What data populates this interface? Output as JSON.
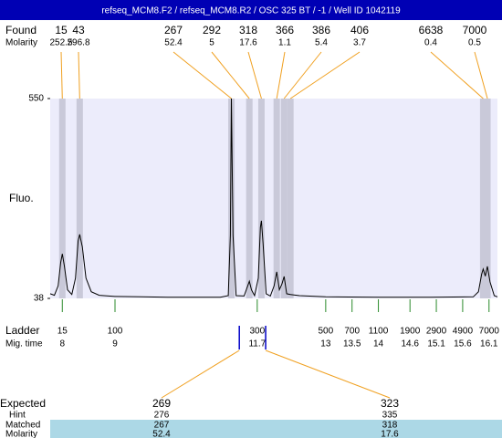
{
  "chart_data": {
    "type": "line",
    "title": "refseq_MCM8.F2 / refseq_MCM8.R2 / OSC 325 BT / -1 / Well ID 1042119",
    "found_label": "Found",
    "molarity_label": "Molarity",
    "y_label": "Fluo.",
    "ylim": [
      38,
      550
    ],
    "yticks": [
      38,
      550
    ],
    "xlim": [
      7.77,
      16.26
    ],
    "found": [
      {
        "size": 15,
        "molarity": 252.5,
        "time": 8.0
      },
      {
        "size": 43,
        "molarity": 296.8,
        "time": 8.33
      },
      {
        "size": 267,
        "molarity": 52.4,
        "time": 11.21
      },
      {
        "size": 292,
        "molarity": 5,
        "time": 11.55
      },
      {
        "size": 318,
        "molarity": 17.6,
        "time": 11.78
      },
      {
        "size": 366,
        "molarity": 1.1,
        "time": 12.07
      },
      {
        "size": 386,
        "molarity": 5.4,
        "time": 12.21
      },
      {
        "size": 406,
        "molarity": 3.7,
        "time": 12.33
      },
      {
        "size": 6638,
        "molarity": 0.4,
        "time": 15.99
      },
      {
        "size": 7000,
        "molarity": 0.5,
        "time": 16.07
      }
    ],
    "trace": {
      "x": [
        7.77,
        7.85,
        7.92,
        7.97,
        8.0,
        8.04,
        8.1,
        8.18,
        8.25,
        8.3,
        8.33,
        8.38,
        8.45,
        8.55,
        8.7,
        9.0,
        9.5,
        10,
        10.5,
        11.0,
        11.15,
        11.19,
        11.21,
        11.24,
        11.3,
        11.45,
        11.52,
        11.55,
        11.59,
        11.65,
        11.72,
        11.76,
        11.78,
        11.81,
        11.87,
        11.95,
        12.02,
        12.07,
        12.12,
        12.17,
        12.21,
        12.26,
        12.33,
        12.5,
        13,
        14,
        15,
        15.8,
        15.9,
        15.96,
        15.99,
        16.03,
        16.07,
        16.12,
        16.2,
        16.26
      ],
      "y": [
        50,
        46,
        70,
        130,
        152,
        120,
        60,
        48,
        90,
        185,
        202,
        170,
        90,
        55,
        46,
        43,
        42,
        41,
        41,
        41,
        45,
        200,
        550,
        200,
        45,
        44,
        70,
        82,
        60,
        45,
        90,
        220,
        237,
        180,
        50,
        44,
        70,
        106,
        60,
        75,
        94,
        50,
        48,
        45,
        42,
        41,
        41,
        42,
        55,
        100,
        113,
        95,
        120,
        80,
        45,
        42
      ]
    },
    "ladder_label": "Ladder",
    "migtime_label": "Mig. time",
    "ladder": {
      "sizes": [
        15,
        100,
        300,
        500,
        700,
        1100,
        1900,
        2900,
        4900,
        7000
      ],
      "times": [
        8,
        9,
        11.7,
        13,
        13.5,
        14,
        14.6,
        15.1,
        15.6,
        16.1
      ]
    },
    "table_labels": {
      "expected": "Expected",
      "hint": "Hint",
      "matched": "Matched",
      "molarity": "Molarity"
    },
    "expected": [
      {
        "expected": 269,
        "hint": 276,
        "matched": 267,
        "molarity": 52.4,
        "time": 11.36
      },
      {
        "expected": 323,
        "hint": 335,
        "matched": 318,
        "molarity": 17.6,
        "time": 11.86
      }
    ]
  }
}
